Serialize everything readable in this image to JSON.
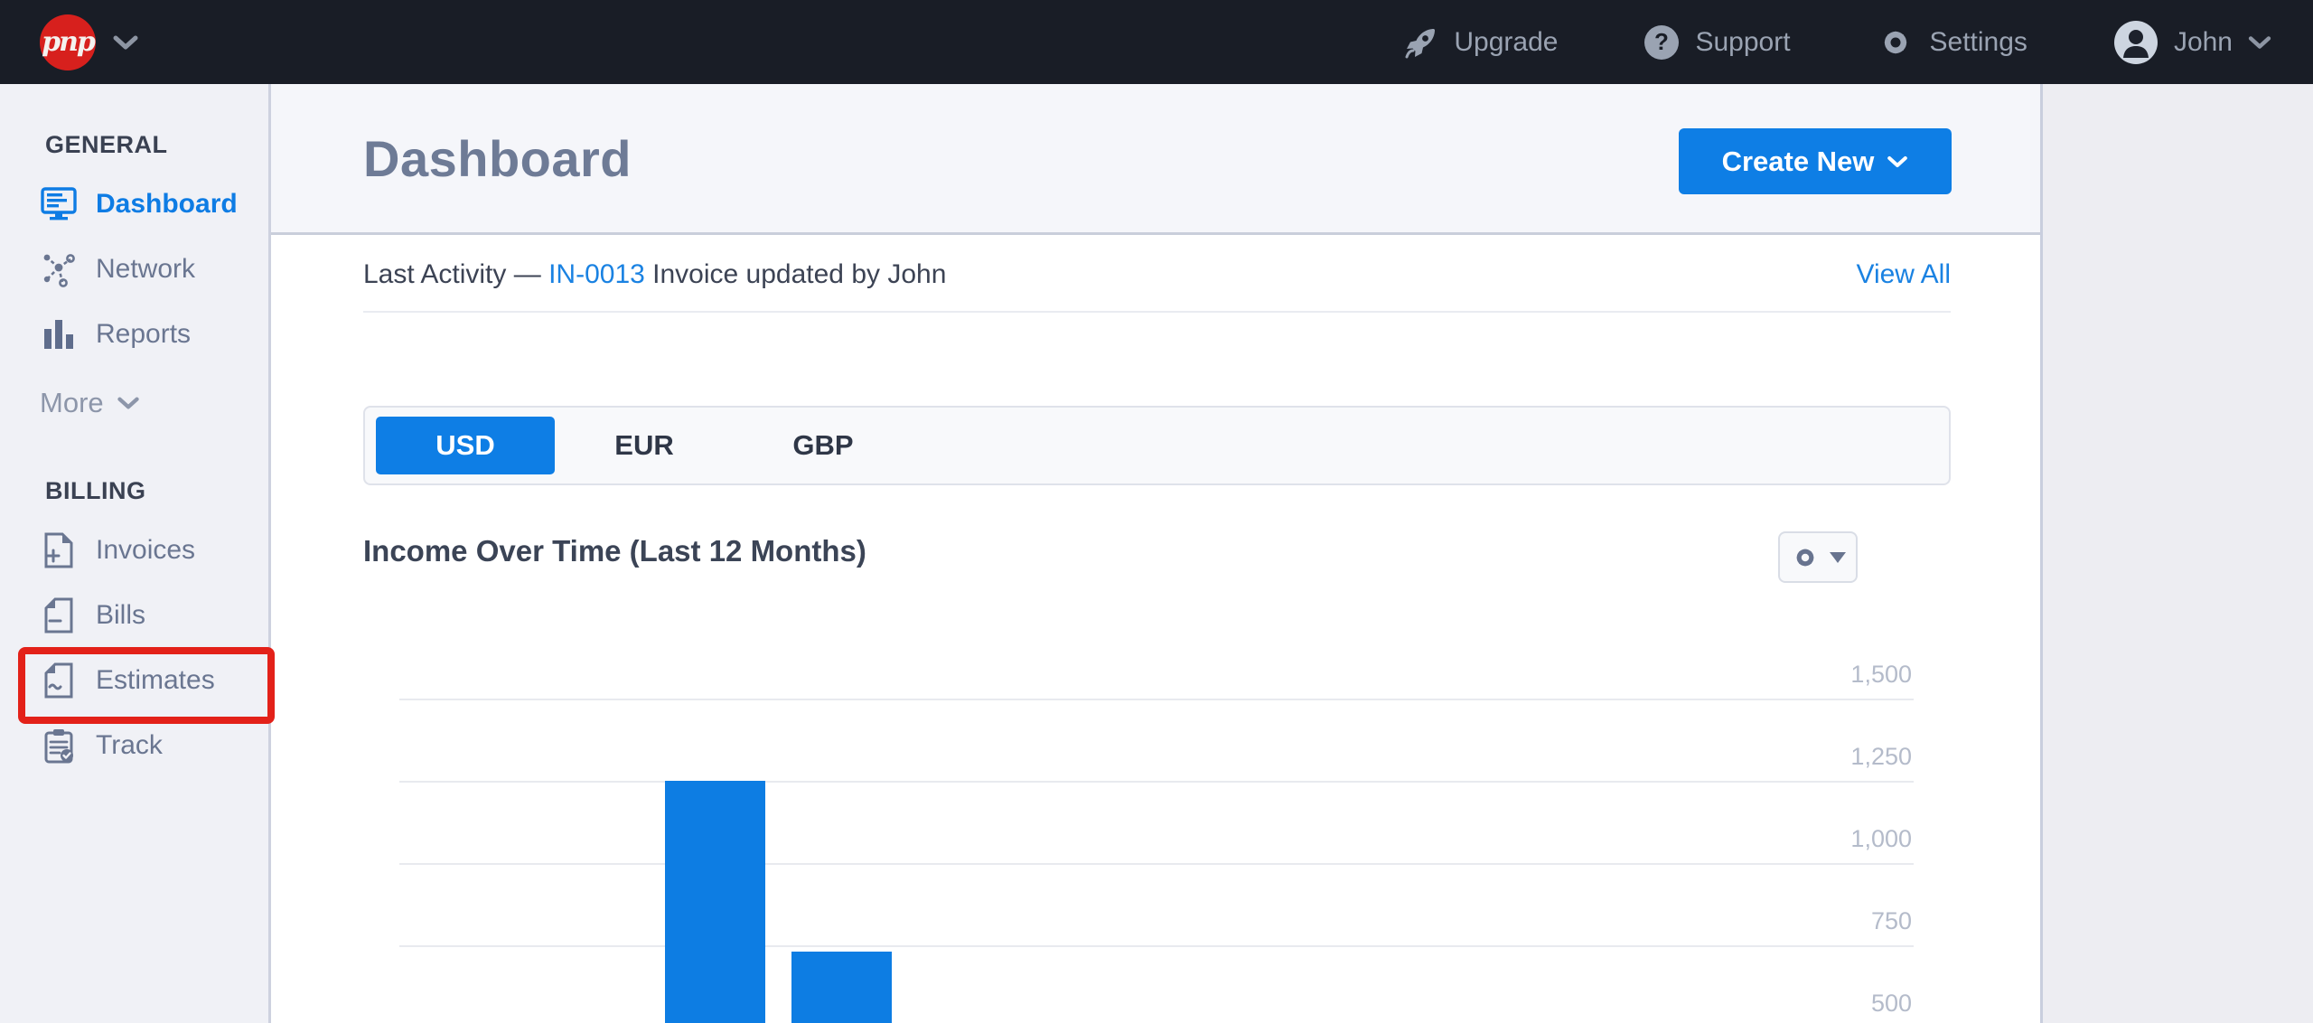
{
  "topbar": {
    "logo_text": "pnp",
    "menu": [
      {
        "label": "Upgrade",
        "icon": "rocket-icon"
      },
      {
        "label": "Support",
        "icon": "help-circle-icon"
      },
      {
        "label": "Settings",
        "icon": "gear-icon"
      }
    ],
    "user": {
      "name": "John",
      "icon": "avatar"
    }
  },
  "sidebar": {
    "sections": [
      {
        "title": "GENERAL",
        "items": [
          {
            "label": "Dashboard",
            "icon": "dashboard-monitor-icon",
            "active": true
          },
          {
            "label": "Network",
            "icon": "network-icon",
            "active": false
          },
          {
            "label": "Reports",
            "icon": "reports-bar-chart-icon",
            "active": false
          }
        ],
        "more_label": "More"
      },
      {
        "title": "BILLING",
        "items": [
          {
            "label": "Invoices",
            "icon": "invoice-plus-doc-icon",
            "active": false
          },
          {
            "label": "Bills",
            "icon": "bill-minus-doc-icon",
            "active": false
          },
          {
            "label": "Estimates",
            "icon": "estimate-tilde-doc-icon",
            "active": false,
            "highlighted": true
          },
          {
            "label": "Track",
            "icon": "track-clipboard-icon",
            "active": false
          }
        ]
      }
    ]
  },
  "annotation": {
    "shape": "highlight-box",
    "target": "Estimates",
    "color": "#e32119"
  },
  "page_header": {
    "title": "Dashboard",
    "create_new_label": "Create New"
  },
  "activity": {
    "label": "Last Activity — ",
    "invoice_link": "IN-0013",
    "description": " Invoice updated by John",
    "view_all": "View All"
  },
  "currency_tabs": {
    "active": "USD",
    "tabs": [
      "USD",
      "EUR",
      "GBP"
    ]
  },
  "chart_data": {
    "type": "bar",
    "title": "Income Over Time (Last 12 Months)",
    "xlabel": "",
    "ylabel": "",
    "axis_side": "right",
    "grid": true,
    "y_ticks": [
      "1,500",
      "1,250",
      "1,000",
      "750",
      "500"
    ],
    "y_tick_values": [
      1500,
      1250,
      1000,
      750,
      500
    ],
    "ylim_visible_top": 1500,
    "total_month_slots": 12,
    "bars_visible": [
      {
        "slot": 2,
        "value": 1250
      },
      {
        "slot": 3,
        "value": 730
      }
    ],
    "bar_color": "#0d7de3"
  },
  "colors": {
    "accent_blue": "#0e7ee5",
    "link_blue": "#1a82e2",
    "active_sidebar_blue": "#0e7ce4",
    "annotation_red": "#e32119",
    "topbar_bg": "#191d26",
    "logo_red": "#d7201d"
  }
}
